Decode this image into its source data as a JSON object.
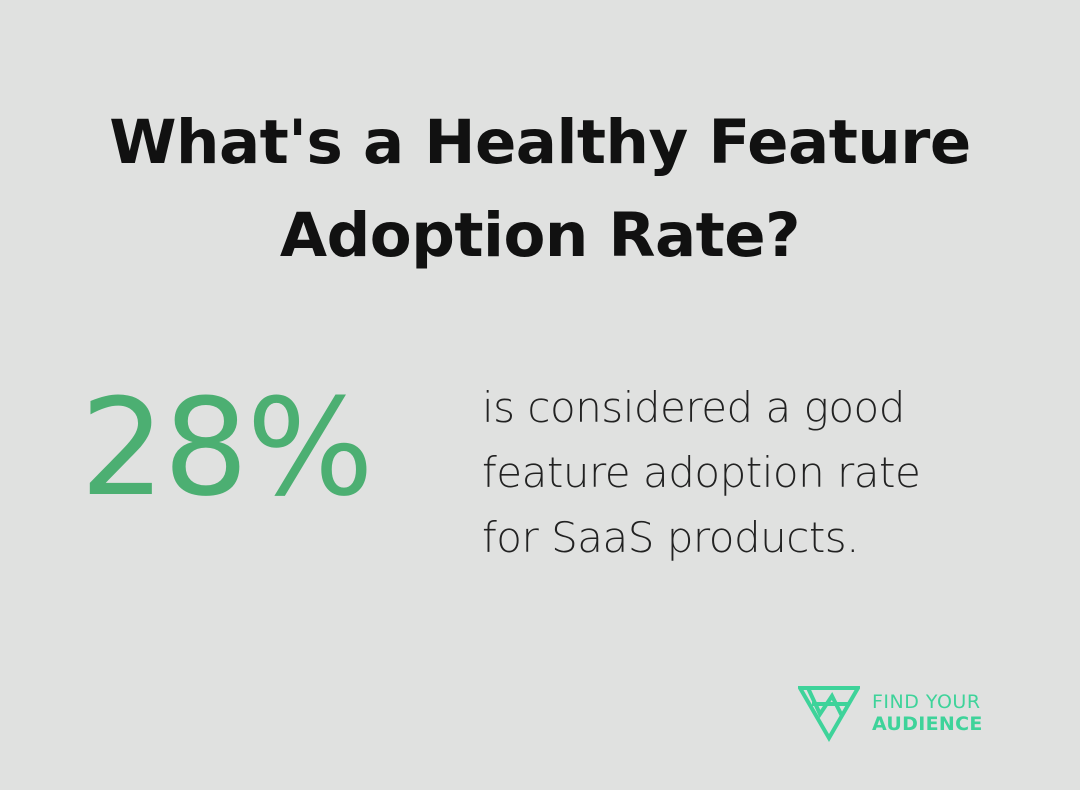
{
  "title": {
    "line1": "What's a Healthy Feature",
    "line2": "Adoption Rate?"
  },
  "stat": {
    "value": "28%"
  },
  "description": {
    "line1": "is considered a good",
    "line2": "feature adoption rate",
    "line3": "for SaaS products."
  },
  "logo": {
    "line1": "FIND YOUR",
    "line2": "AUDIENCE",
    "icon": "triangle-logo-icon"
  },
  "colors": {
    "background": "#e0e1e0",
    "title": "#111111",
    "stat": "#4caf72",
    "description": "#222222",
    "brand": "#3ed39a"
  }
}
